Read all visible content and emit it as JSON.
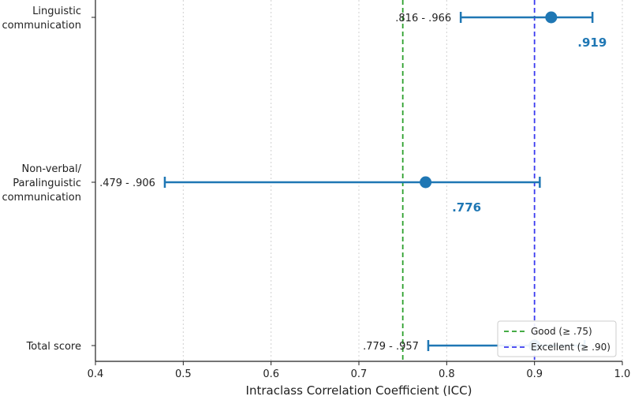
{
  "chart_data": {
    "type": "forest",
    "xlabel": "Intraclass Correlation Coefficient (ICC)",
    "xlim": [
      0.4,
      1.0
    ],
    "xticks": [
      "0.4",
      "0.5",
      "0.6",
      "0.7",
      "0.8",
      "0.9",
      "1.0"
    ],
    "grid": "vertical dotted",
    "colors": {
      "series": "#1f77b4",
      "good": "#2ca02c",
      "excellent": "#3b3bf0"
    },
    "rows": [
      {
        "category": [
          "Linguistic",
          "communication"
        ],
        "icc": 0.919,
        "icc_label": ".919",
        "lower": 0.816,
        "upper": 0.966,
        "ci_label": ".816 - .966"
      },
      {
        "category": [
          "Non-verbal/",
          "Paralinguistic",
          "communication"
        ],
        "icc": 0.776,
        "icc_label": ".776",
        "lower": 0.479,
        "upper": 0.906,
        "ci_label": ".479 - .906"
      },
      {
        "category": [
          "Total score"
        ],
        "icc": 0.9,
        "icc_label": "",
        "lower": 0.779,
        "upper": 0.957,
        "ci_label": ".779 - .957"
      }
    ],
    "reference_lines": [
      {
        "value": 0.75,
        "label": "Good (≥ .75)",
        "color": "#2ca02c"
      },
      {
        "value": 0.9,
        "label": "Excellent (≥ .90)",
        "color": "#3b3bf0"
      }
    ],
    "legend_position": "lower-right"
  }
}
